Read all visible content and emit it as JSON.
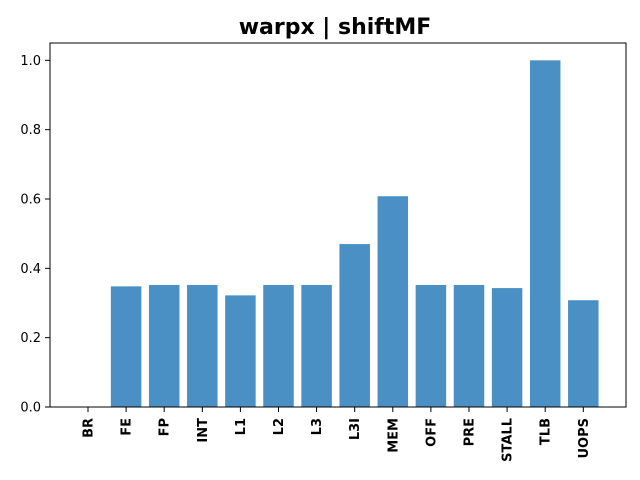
{
  "chart_data": {
    "type": "bar",
    "title": "warpx | shiftMF",
    "xlabel": "",
    "ylabel": "",
    "categories": [
      "BR",
      "FE",
      "FP",
      "INT",
      "L1",
      "L2",
      "L3",
      "L3I",
      "MEM",
      "OFF",
      "PRE",
      "STALL",
      "TLB",
      "UOPS"
    ],
    "values": [
      0.0,
      0.348,
      0.352,
      0.352,
      0.322,
      0.352,
      0.352,
      0.47,
      0.608,
      0.352,
      0.352,
      0.343,
      1.0,
      0.308
    ],
    "ylim": [
      0.0,
      1.05
    ],
    "yticks": [
      "0.0",
      "0.2",
      "0.4",
      "0.6",
      "0.8",
      "1.0"
    ],
    "bar_color": "#4a90c4",
    "grid": false,
    "legend": "none"
  }
}
